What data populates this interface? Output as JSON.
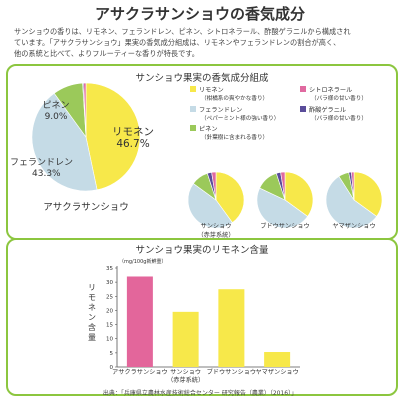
{
  "page": {
    "title": "アサクラサンショウの香気成分",
    "intro_lines": [
      "サンショウの香りは、リモネン、フェランドレン、ピネン、シトロネラール、酢酸ゲラニルから構成され",
      "ています。「アサクラサンショウ」果実の香気成分組成は、リモネンやフェランドレンの割合が高く、",
      "他の系統と比べて、よりフルーティーな香りが特長です。"
    ],
    "source": "出典：「兵庫県立農林水産技術総合センター 研究報告（農業）（2016）」"
  },
  "colors": {
    "limonene": "#f7e84a",
    "phellandrene": "#c5dbe6",
    "pinene": "#9bc95a",
    "citronellal": "#e06aa0",
    "geranyl": "#5a4c9a",
    "bar_pink": "#e3669b",
    "bar_yellow": "#f7e84a",
    "frame": "#8cc63f"
  },
  "chart_data": [
    {
      "type": "pie",
      "title": "サンショウ果実の香気成分組成",
      "legend": [
        {
          "key": "limonene",
          "name": "リモネン",
          "desc": "（柑橘系の爽やかな香り）"
        },
        {
          "key": "citronellal",
          "name": "シトロネラール",
          "desc": "（バラ様の甘い香り）"
        },
        {
          "key": "phellandrene",
          "name": "フェランドレン",
          "desc": "（ペパーミント様の強い香り）"
        },
        {
          "key": "geranyl",
          "name": "酢酸ゲラニル",
          "desc": "（バラ様の甘い香り）"
        },
        {
          "key": "pinene",
          "name": "ピネン",
          "desc": "（針葉樹に含まれる香り）"
        }
      ],
      "pies": [
        {
          "label": "アサクラサンショウ",
          "values": {
            "limonene": 46.7,
            "phellandrene": 43.3,
            "pinene": 9.0,
            "citronellal": 0.7,
            "geranyl": 0.3
          },
          "labels": {
            "limonene": "リモネン",
            "phellandrene": "フェランドレン",
            "pinene": "ピネン"
          },
          "pct_labels": {
            "limonene": "46.7%",
            "phellandrene": "43.3%",
            "pinene": "9.0%"
          }
        },
        {
          "label": "サンショウ（赤芽系統）",
          "values": {
            "limonene": 40,
            "phellandrene": 45,
            "pinene": 10,
            "citronellal": 2.5,
            "geranyl": 2.5
          }
        },
        {
          "label": "ブドウサンショウ",
          "values": {
            "limonene": 35,
            "phellandrene": 47,
            "pinene": 13,
            "citronellal": 2.5,
            "geranyl": 2.5
          }
        },
        {
          "label": "ヤマザンショウ",
          "values": {
            "limonene": 35,
            "phellandrene": 56,
            "pinene": 6,
            "citronellal": 1.5,
            "geranyl": 1.5
          }
        }
      ]
    },
    {
      "type": "bar",
      "title": "サンショウ果実のリモネン含量",
      "ylabel": "リモネン含量",
      "unit": "（mg/100g新鮮重）",
      "categories": [
        "アサクラサンショウ",
        "サンショウ\n（赤芽系統）",
        "ブドウサンショウ",
        "ヤマザンショウ"
      ],
      "values": [
        32,
        19.5,
        27.5,
        5.3
      ],
      "ylim": [
        0,
        35
      ],
      "yticks": [
        0,
        5,
        10,
        15,
        20,
        25,
        30,
        35
      ],
      "bar_colors": [
        "bar_pink",
        "bar_yellow",
        "bar_yellow",
        "bar_yellow"
      ],
      "grid": false
    }
  ]
}
